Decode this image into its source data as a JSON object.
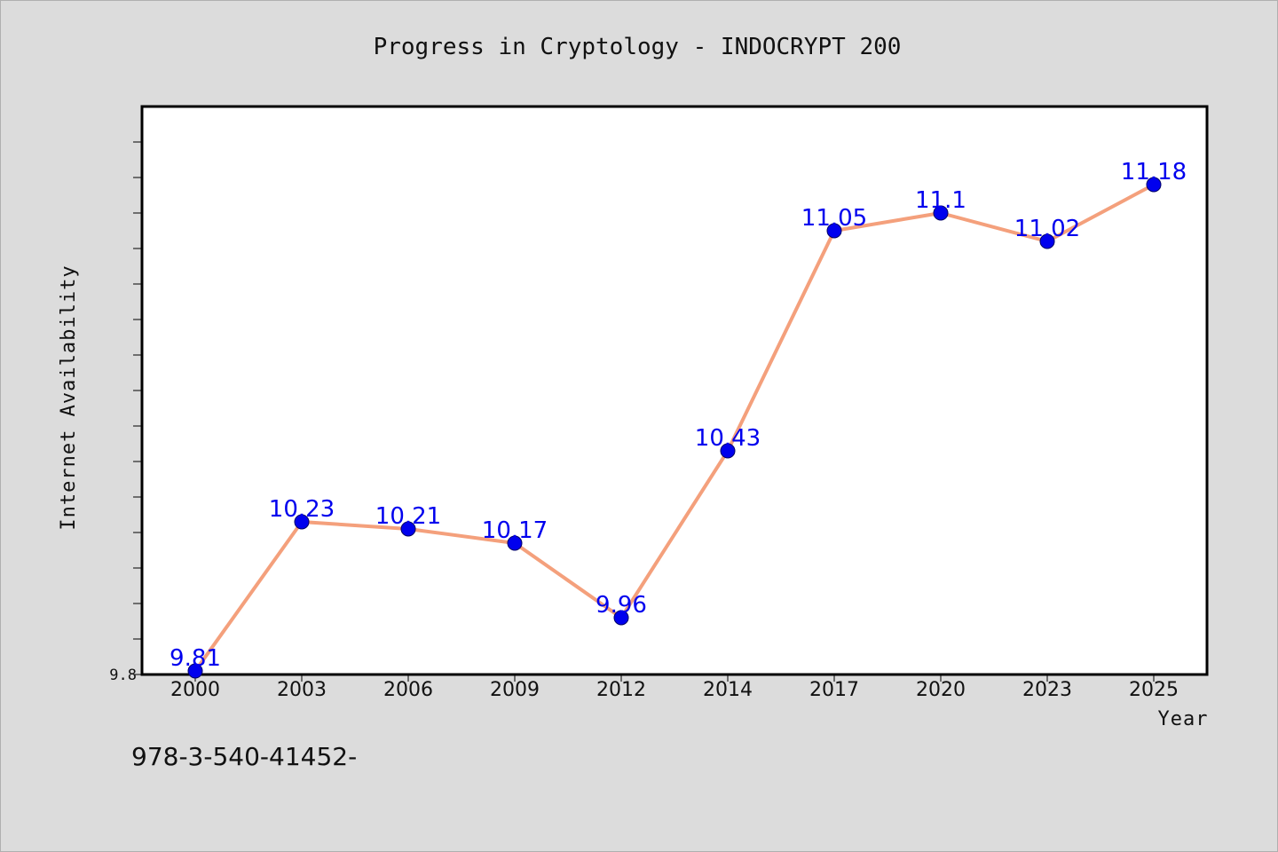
{
  "chart_data": {
    "type": "line",
    "title": "Progress in Cryptology - INDOCRYPT 200",
    "xlabel": "Year",
    "ylabel": "Internet Availability",
    "categories": [
      "2000",
      "2003",
      "2006",
      "2009",
      "2012",
      "2014",
      "2017",
      "2020",
      "2023",
      "2025"
    ],
    "series": [
      {
        "values": [
          9.81,
          10.23,
          10.21,
          10.17,
          9.96,
          10.43,
          11.05,
          11.1,
          11.02,
          11.18
        ],
        "labels": [
          "9.81",
          "10.23",
          "10.21",
          "10.17",
          "9.96",
          "10.43",
          "11.05",
          "11.1",
          "11.02",
          "11.18"
        ],
        "color": "#f4a07c",
        "marker_color": "#0000ee"
      }
    ],
    "ylim": [
      9.8,
      11.4
    ],
    "y_tick_labels": [
      "9.8"
    ],
    "grid": false,
    "legend": "none"
  },
  "footer": {
    "text": "978-3-540-41452-"
  }
}
